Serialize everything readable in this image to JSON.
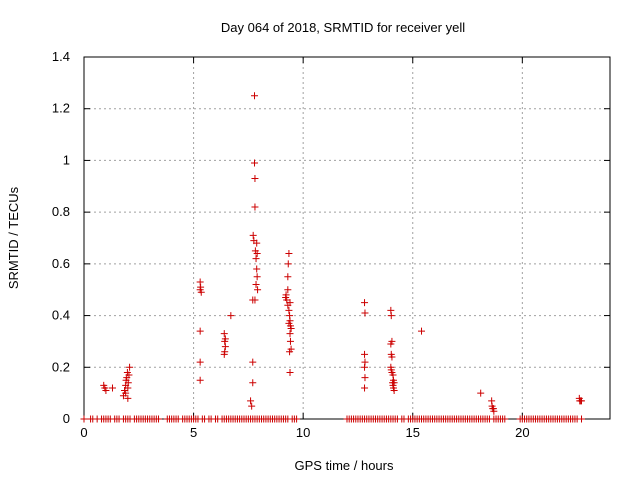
{
  "chart_data": {
    "type": "scatter",
    "title": "Day 064 of 2018, SRMTID for receiver yell",
    "xlabel": "GPS time / hours",
    "ylabel": "SRMTID / TECUs",
    "xlim": [
      0,
      24
    ],
    "ylim": [
      0,
      1.4
    ],
    "xticks": [
      0,
      5,
      10,
      15,
      20
    ],
    "yticks": [
      0,
      0.2,
      0.4,
      0.6,
      0.8,
      1,
      1.2,
      1.4
    ],
    "xtick_labels": [
      "0",
      "5",
      "10",
      "15",
      "20"
    ],
    "ytick_labels": [
      "0",
      "0.2",
      "0.4",
      "0.6",
      "0.8",
      "1",
      "1.2",
      "1.4"
    ],
    "grid": true,
    "marker": "+",
    "series": [
      {
        "name": "SRMTID",
        "color": "#cc0000",
        "points": [
          [
            0.9,
            0.13
          ],
          [
            0.95,
            0.12
          ],
          [
            1.0,
            0.11
          ],
          [
            1.3,
            0.12
          ],
          [
            1.8,
            0.09
          ],
          [
            1.85,
            0.11
          ],
          [
            1.9,
            0.13
          ],
          [
            1.92,
            0.15
          ],
          [
            1.95,
            0.16
          ],
          [
            1.98,
            0.18
          ],
          [
            2.0,
            0.12
          ],
          [
            2.02,
            0.14
          ],
          [
            2.05,
            0.17
          ],
          [
            2.08,
            0.2
          ],
          [
            1.9,
            0.1
          ],
          [
            2.0,
            0.08
          ],
          [
            5.3,
            0.53
          ],
          [
            5.32,
            0.51
          ],
          [
            5.35,
            0.49
          ],
          [
            5.3,
            0.5
          ],
          [
            5.3,
            0.34
          ],
          [
            5.3,
            0.22
          ],
          [
            5.3,
            0.15
          ],
          [
            6.4,
            0.33
          ],
          [
            6.42,
            0.3
          ],
          [
            6.45,
            0.28
          ],
          [
            6.4,
            0.25
          ],
          [
            6.42,
            0.26
          ],
          [
            6.45,
            0.31
          ],
          [
            6.7,
            0.4
          ],
          [
            7.6,
            0.07
          ],
          [
            7.65,
            0.05
          ],
          [
            7.7,
            0.14
          ],
          [
            7.7,
            0.22
          ],
          [
            7.7,
            0.46
          ],
          [
            7.72,
            0.71
          ],
          [
            7.75,
            0.69
          ],
          [
            7.78,
            1.25
          ],
          [
            7.78,
            0.99
          ],
          [
            7.8,
            0.93
          ],
          [
            7.8,
            0.82
          ],
          [
            7.82,
            0.65
          ],
          [
            7.85,
            0.62
          ],
          [
            7.88,
            0.58
          ],
          [
            7.9,
            0.55
          ],
          [
            7.92,
            0.5
          ],
          [
            7.8,
            0.46
          ],
          [
            7.85,
            0.52
          ],
          [
            7.88,
            0.68
          ],
          [
            7.9,
            0.64
          ],
          [
            9.2,
            0.47
          ],
          [
            9.22,
            0.48
          ],
          [
            9.25,
            0.46
          ],
          [
            9.3,
            0.5
          ],
          [
            9.3,
            0.55
          ],
          [
            9.32,
            0.6
          ],
          [
            9.35,
            0.64
          ],
          [
            9.35,
            0.42
          ],
          [
            9.38,
            0.4
          ],
          [
            9.4,
            0.38
          ],
          [
            9.4,
            0.45
          ],
          [
            9.42,
            0.36
          ],
          [
            9.45,
            0.35
          ],
          [
            9.4,
            0.33
          ],
          [
            9.42,
            0.3
          ],
          [
            9.45,
            0.27
          ],
          [
            9.38,
            0.26
          ],
          [
            9.4,
            0.18
          ],
          [
            9.3,
            0.44
          ],
          [
            9.35,
            0.37
          ],
          [
            12.8,
            0.45
          ],
          [
            12.82,
            0.41
          ],
          [
            12.8,
            0.25
          ],
          [
            12.82,
            0.22
          ],
          [
            12.8,
            0.2
          ],
          [
            12.82,
            0.16
          ],
          [
            12.8,
            0.12
          ],
          [
            14.0,
            0.42
          ],
          [
            14.02,
            0.4
          ],
          [
            14.05,
            0.3
          ],
          [
            14.0,
            0.29
          ],
          [
            14.02,
            0.25
          ],
          [
            14.05,
            0.24
          ],
          [
            14.0,
            0.2
          ],
          [
            14.02,
            0.19
          ],
          [
            14.05,
            0.18
          ],
          [
            14.1,
            0.17
          ],
          [
            14.12,
            0.15
          ],
          [
            14.15,
            0.14
          ],
          [
            14.1,
            0.13
          ],
          [
            14.12,
            0.12
          ],
          [
            14.15,
            0.11
          ],
          [
            14.08,
            0.14
          ],
          [
            15.4,
            0.34
          ],
          [
            18.1,
            0.1
          ],
          [
            18.6,
            0.07
          ],
          [
            18.62,
            0.05
          ],
          [
            18.65,
            0.04
          ],
          [
            18.7,
            0.03
          ],
          [
            18.68,
            0.04
          ],
          [
            22.6,
            0.08
          ],
          [
            22.62,
            0.07
          ],
          [
            22.65,
            0.07
          ],
          [
            22.7,
            0.07
          ],
          [
            0.0,
            0.0
          ],
          [
            0.3,
            0.0
          ],
          [
            0.4,
            0.0
          ],
          [
            0.6,
            0.0
          ],
          [
            0.8,
            0.0
          ],
          [
            0.9,
            0.0
          ],
          [
            1.0,
            0.0
          ],
          [
            1.1,
            0.0
          ],
          [
            1.2,
            0.0
          ],
          [
            1.4,
            0.0
          ],
          [
            1.5,
            0.0
          ],
          [
            1.6,
            0.0
          ],
          [
            1.8,
            0.0
          ],
          [
            1.9,
            0.0
          ],
          [
            2.0,
            0.0
          ],
          [
            2.1,
            0.0
          ],
          [
            2.3,
            0.0
          ],
          [
            2.4,
            0.0
          ],
          [
            2.5,
            0.0
          ],
          [
            2.6,
            0.0
          ],
          [
            2.7,
            0.0
          ],
          [
            2.8,
            0.0
          ],
          [
            2.9,
            0.0
          ],
          [
            3.0,
            0.0
          ],
          [
            3.1,
            0.0
          ],
          [
            3.2,
            0.0
          ],
          [
            3.3,
            0.0
          ],
          [
            3.4,
            0.0
          ],
          [
            3.8,
            0.0
          ],
          [
            3.9,
            0.0
          ],
          [
            4.0,
            0.0
          ],
          [
            4.1,
            0.0
          ],
          [
            4.2,
            0.0
          ],
          [
            4.3,
            0.0
          ],
          [
            4.5,
            0.0
          ],
          [
            4.6,
            0.0
          ],
          [
            4.7,
            0.0
          ],
          [
            4.8,
            0.0
          ],
          [
            4.9,
            0.0
          ],
          [
            5.0,
            0.0
          ],
          [
            5.1,
            0.0
          ],
          [
            5.2,
            0.0
          ],
          [
            5.4,
            0.0
          ],
          [
            5.5,
            0.0
          ],
          [
            5.7,
            0.0
          ],
          [
            5.8,
            0.0
          ],
          [
            6.0,
            0.0
          ],
          [
            6.1,
            0.0
          ],
          [
            6.3,
            0.0
          ],
          [
            6.4,
            0.0
          ],
          [
            6.5,
            0.0
          ],
          [
            6.6,
            0.0
          ],
          [
            6.7,
            0.0
          ],
          [
            6.8,
            0.0
          ],
          [
            6.9,
            0.0
          ],
          [
            7.0,
            0.0
          ],
          [
            7.1,
            0.0
          ],
          [
            7.2,
            0.0
          ],
          [
            7.3,
            0.0
          ],
          [
            7.4,
            0.0
          ],
          [
            7.5,
            0.0
          ],
          [
            7.6,
            0.0
          ],
          [
            7.7,
            0.0
          ],
          [
            7.8,
            0.0
          ],
          [
            7.9,
            0.0
          ],
          [
            8.0,
            0.0
          ],
          [
            8.1,
            0.0
          ],
          [
            8.2,
            0.0
          ],
          [
            8.3,
            0.0
          ],
          [
            8.4,
            0.0
          ],
          [
            8.5,
            0.0
          ],
          [
            8.6,
            0.0
          ],
          [
            8.7,
            0.0
          ],
          [
            8.8,
            0.0
          ],
          [
            8.9,
            0.0
          ],
          [
            9.0,
            0.0
          ],
          [
            9.1,
            0.0
          ],
          [
            9.2,
            0.0
          ],
          [
            9.3,
            0.0
          ],
          [
            9.5,
            0.0
          ],
          [
            9.6,
            0.0
          ],
          [
            9.7,
            0.0
          ],
          [
            12.0,
            0.0
          ],
          [
            12.1,
            0.0
          ],
          [
            12.2,
            0.0
          ],
          [
            12.3,
            0.0
          ],
          [
            12.4,
            0.0
          ],
          [
            12.5,
            0.0
          ],
          [
            12.6,
            0.0
          ],
          [
            12.7,
            0.0
          ],
          [
            12.8,
            0.0
          ],
          [
            12.9,
            0.0
          ],
          [
            13.0,
            0.0
          ],
          [
            13.1,
            0.0
          ],
          [
            13.2,
            0.0
          ],
          [
            13.3,
            0.0
          ],
          [
            13.4,
            0.0
          ],
          [
            13.5,
            0.0
          ],
          [
            13.6,
            0.0
          ],
          [
            13.7,
            0.0
          ],
          [
            13.8,
            0.0
          ],
          [
            13.9,
            0.0
          ],
          [
            14.0,
            0.0
          ],
          [
            14.1,
            0.0
          ],
          [
            14.2,
            0.0
          ],
          [
            14.3,
            0.0
          ],
          [
            14.5,
            0.0
          ],
          [
            14.6,
            0.0
          ],
          [
            14.8,
            0.0
          ],
          [
            14.9,
            0.0
          ],
          [
            15.0,
            0.0
          ],
          [
            15.1,
            0.0
          ],
          [
            15.2,
            0.0
          ],
          [
            15.3,
            0.0
          ],
          [
            15.4,
            0.0
          ],
          [
            15.5,
            0.0
          ],
          [
            15.6,
            0.0
          ],
          [
            15.7,
            0.0
          ],
          [
            15.8,
            0.0
          ],
          [
            15.9,
            0.0
          ],
          [
            16.0,
            0.0
          ],
          [
            16.1,
            0.0
          ],
          [
            16.2,
            0.0
          ],
          [
            16.3,
            0.0
          ],
          [
            16.4,
            0.0
          ],
          [
            16.5,
            0.0
          ],
          [
            16.6,
            0.0
          ],
          [
            16.7,
            0.0
          ],
          [
            16.8,
            0.0
          ],
          [
            16.9,
            0.0
          ],
          [
            17.0,
            0.0
          ],
          [
            17.1,
            0.0
          ],
          [
            17.2,
            0.0
          ],
          [
            17.3,
            0.0
          ],
          [
            17.4,
            0.0
          ],
          [
            17.5,
            0.0
          ],
          [
            17.6,
            0.0
          ],
          [
            17.7,
            0.0
          ],
          [
            17.8,
            0.0
          ],
          [
            17.9,
            0.0
          ],
          [
            18.0,
            0.0
          ],
          [
            18.1,
            0.0
          ],
          [
            18.2,
            0.0
          ],
          [
            18.3,
            0.0
          ],
          [
            18.4,
            0.0
          ],
          [
            18.5,
            0.0
          ],
          [
            18.7,
            0.0
          ],
          [
            18.8,
            0.0
          ],
          [
            18.9,
            0.0
          ],
          [
            19.0,
            0.0
          ],
          [
            19.1,
            0.0
          ],
          [
            19.2,
            0.0
          ],
          [
            19.9,
            0.0
          ],
          [
            20.0,
            0.0
          ],
          [
            20.1,
            0.0
          ],
          [
            20.2,
            0.0
          ],
          [
            20.3,
            0.0
          ],
          [
            20.4,
            0.0
          ],
          [
            20.5,
            0.0
          ],
          [
            20.6,
            0.0
          ],
          [
            20.7,
            0.0
          ],
          [
            20.8,
            0.0
          ],
          [
            20.9,
            0.0
          ],
          [
            21.0,
            0.0
          ],
          [
            21.1,
            0.0
          ],
          [
            21.2,
            0.0
          ],
          [
            21.3,
            0.0
          ],
          [
            21.4,
            0.0
          ],
          [
            21.5,
            0.0
          ],
          [
            21.6,
            0.0
          ],
          [
            21.7,
            0.0
          ],
          [
            21.8,
            0.0
          ],
          [
            21.9,
            0.0
          ],
          [
            22.0,
            0.0
          ],
          [
            22.1,
            0.0
          ],
          [
            22.2,
            0.0
          ],
          [
            22.3,
            0.0
          ],
          [
            22.4,
            0.0
          ],
          [
            22.5,
            0.0
          ],
          [
            22.7,
            0.0
          ]
        ]
      }
    ]
  }
}
